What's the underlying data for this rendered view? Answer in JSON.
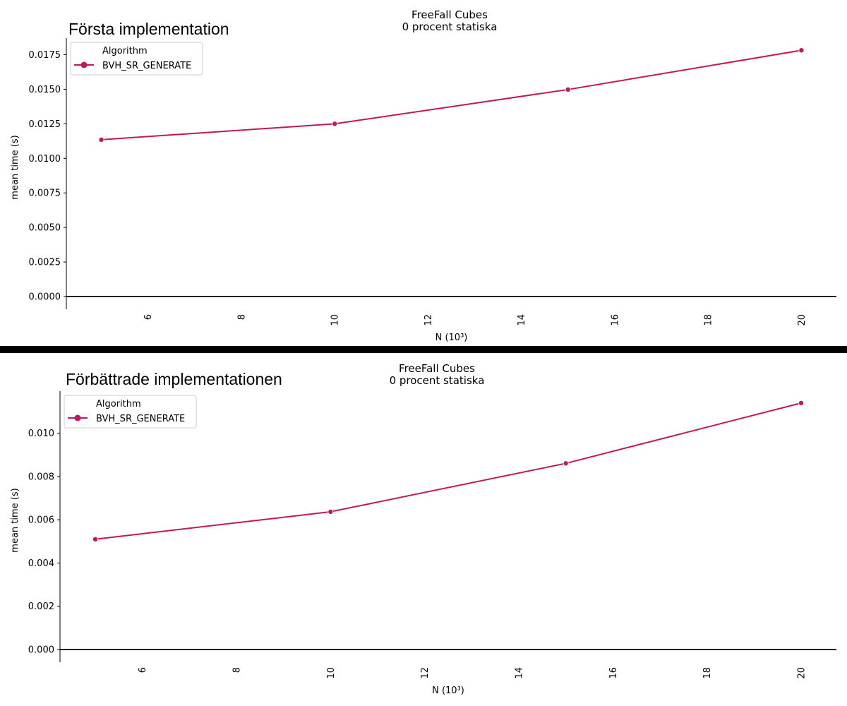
{
  "panels": [
    {
      "caption": "Första implementation",
      "chart_data": {
        "type": "line",
        "title": "FreeFall Cubes",
        "subtitle": "0 procent statiska",
        "xlabel": "N (10³)",
        "ylabel": "mean time (s)",
        "xlim": [
          4.25,
          20.75
        ],
        "ylim": [
          0,
          0.0187
        ],
        "x_ticks": [
          6,
          8,
          10,
          12,
          14,
          16,
          18,
          20
        ],
        "y_ticks": [
          "0.0000",
          "0.0025",
          "0.0050",
          "0.0075",
          "0.0100",
          "0.0125",
          "0.0150",
          "0.0175"
        ],
        "grid": false,
        "legend": {
          "title": "Algorithm",
          "placement": "top-left"
        },
        "series": [
          {
            "name": "BVH_SR_GENERATE",
            "color": "#c2185b",
            "x": [
              5,
              10,
              15,
              20
            ],
            "y": [
              0.01135,
              0.0125,
              0.01498,
              0.01782
            ]
          }
        ]
      }
    },
    {
      "caption": "Förbättrade implementationen",
      "chart_data": {
        "type": "line",
        "title": "FreeFall Cubes",
        "subtitle": "0 procent statiska",
        "xlabel": "N (10³)",
        "ylabel": "mean time (s)",
        "xlim": [
          4.25,
          20.75
        ],
        "ylim": [
          0,
          0.01195
        ],
        "x_ticks": [
          6,
          8,
          10,
          12,
          14,
          16,
          18,
          20
        ],
        "y_ticks": [
          "0.000",
          "0.002",
          "0.004",
          "0.006",
          "0.008",
          "0.010"
        ],
        "grid": false,
        "legend": {
          "title": "Algorithm",
          "placement": "top-left"
        },
        "series": [
          {
            "name": "BVH_SR_GENERATE",
            "color": "#c2185b",
            "x": [
              5,
              10,
              15,
              20
            ],
            "y": [
              0.0051,
              0.00637,
              0.00861,
              0.0114
            ]
          }
        ]
      }
    }
  ]
}
